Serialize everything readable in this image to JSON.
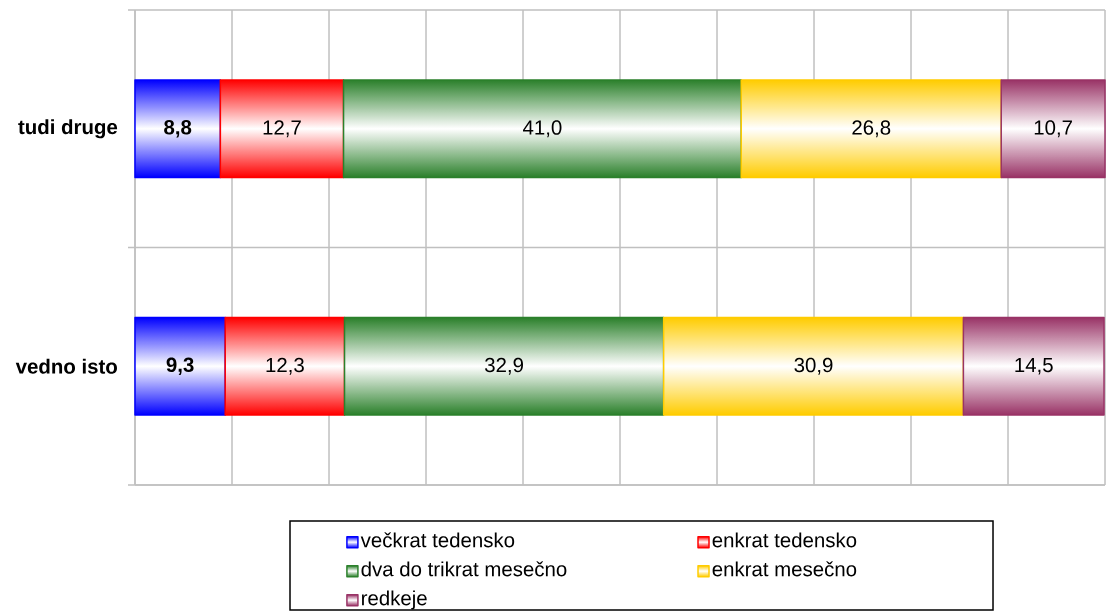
{
  "chart_data": {
    "type": "bar",
    "orientation": "horizontal",
    "stacked": true,
    "categories": [
      "tudi druge",
      "vedno isto"
    ],
    "series": [
      {
        "name": "večkrat tedensko",
        "color": "#0000ff",
        "values": [
          8.8,
          9.3
        ],
        "value_labels": [
          "8,8",
          "9,3"
        ]
      },
      {
        "name": "enkrat tedensko",
        "color": "#ff0000",
        "values": [
          12.7,
          12.3
        ],
        "value_labels": [
          "12,7",
          "12,3"
        ]
      },
      {
        "name": "dva do trikrat mesečno",
        "color": "#2b802b",
        "values": [
          41.0,
          32.9
        ],
        "value_labels": [
          "41,0",
          "32,9"
        ]
      },
      {
        "name": "enkrat mesečno",
        "color": "#ffcc00",
        "values": [
          26.8,
          30.9
        ],
        "value_labels": [
          "26,8",
          "30,9"
        ]
      },
      {
        "name": "redkeje",
        "color": "#993366",
        "values": [
          10.7,
          14.5
        ],
        "value_labels": [
          "10,7",
          "14,5"
        ]
      }
    ],
    "xlim": [
      0,
      100
    ],
    "xticks": [
      {
        "value": 0,
        "label": null
      },
      {
        "value": 10,
        "label": null
      },
      {
        "value": 20,
        "label": null
      },
      {
        "value": 30,
        "label": null
      },
      {
        "value": 40,
        "label": null
      },
      {
        "value": 50,
        "label": null
      },
      {
        "value": 60,
        "label": null
      },
      {
        "value": 70,
        "label": null
      },
      {
        "value": 80,
        "label": null
      },
      {
        "value": 90,
        "label": null
      },
      {
        "value": 100,
        "label": null
      }
    ],
    "grid": true,
    "legend": "bottom",
    "tick_labels": "y"
  }
}
